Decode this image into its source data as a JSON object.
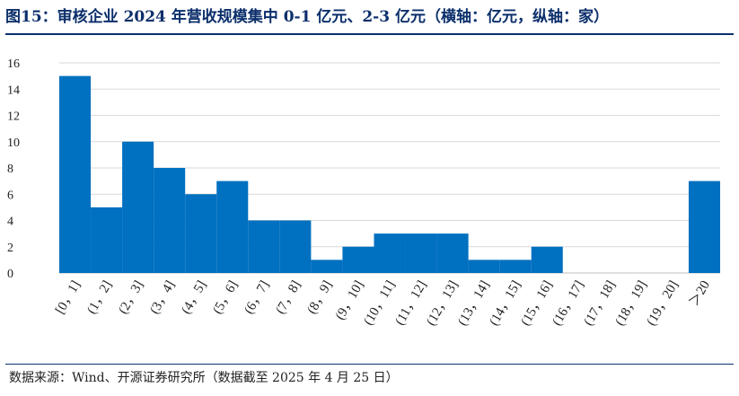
{
  "header": {
    "title": "图15：审核企业 2024 年营收规模集中 0-1 亿元、2-3 亿元（横轴：亿元，纵轴：家）"
  },
  "footer": {
    "source": "数据来源：Wind、开源证券研究所（数据截至 2025 年 4 月 25 日）"
  },
  "colors": {
    "bar": "#0070c0",
    "grid": "#d9d9d9",
    "accent": "#0b2f6b"
  },
  "chart_data": {
    "type": "bar",
    "title": "",
    "xlabel": "",
    "ylabel": "",
    "ylim": [
      0,
      16
    ],
    "yticks": [
      0,
      2,
      4,
      6,
      8,
      10,
      12,
      14,
      16
    ],
    "grid": true,
    "categories": [
      "[0，1]",
      "(1，2]",
      "(2，3]",
      "(3，4]",
      "(4，5]",
      "(5，6]",
      "(6，7]",
      "(7，8]",
      "(8，9]",
      "(9，10]",
      "(10，11]",
      "(11，12]",
      "(12，13]",
      "(13，14]",
      "(14，15]",
      "(15，16]",
      "(16，17]",
      "(17，18]",
      "(18，19]",
      "(19，20]",
      "＞20"
    ],
    "values": [
      15,
      5,
      10,
      8,
      6,
      7,
      4,
      4,
      1,
      2,
      3,
      3,
      3,
      1,
      1,
      2,
      0,
      0,
      0,
      0,
      7
    ]
  }
}
